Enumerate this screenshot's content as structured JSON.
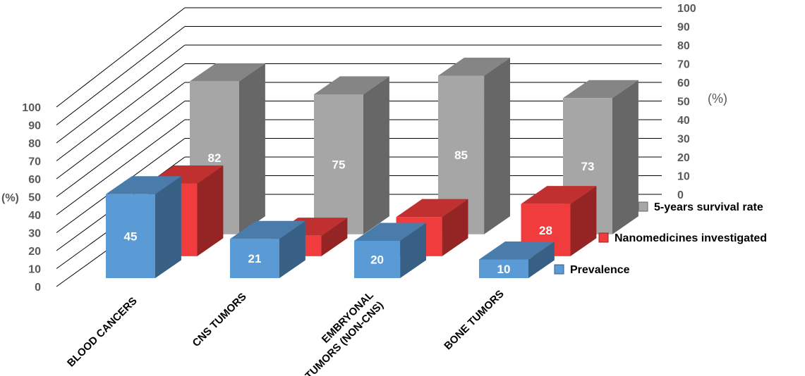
{
  "chart_data": {
    "type": "bar",
    "categories": [
      "BLOOD CANCERS",
      "CNS TUMORS",
      "EMBRYONAL TUMORS (NON-CNS)",
      "BONE TUMORS"
    ],
    "category_lines": [
      [
        "BLOOD CANCERS"
      ],
      [
        "CNS TUMORS"
      ],
      [
        "EMBRYONAL",
        "TUMORS (NON-CNS)"
      ],
      [
        "BONE TUMORS"
      ]
    ],
    "series": [
      {
        "name": "5-years survival rate",
        "values": [
          82,
          75,
          85,
          73
        ],
        "color": "#a6a6a6"
      },
      {
        "name": "Nanomedicines investigated",
        "values": [
          39,
          11,
          21,
          28
        ],
        "color": "#f03c3c"
      },
      {
        "name": "Prevalence",
        "values": [
          45,
          21,
          20,
          10
        ],
        "color": "#5b9bd5"
      }
    ],
    "left_axis": {
      "label": "(%)",
      "ticks": [
        0,
        10,
        20,
        30,
        40,
        50,
        60,
        70,
        80,
        90,
        100
      ]
    },
    "right_axis": {
      "label": "(%)",
      "ticks": [
        0,
        10,
        20,
        30,
        40,
        50,
        60,
        70,
        80,
        90,
        100
      ]
    },
    "ylim": [
      0,
      100
    ],
    "grid": true,
    "legend_position": "right",
    "style": "3d-column"
  }
}
